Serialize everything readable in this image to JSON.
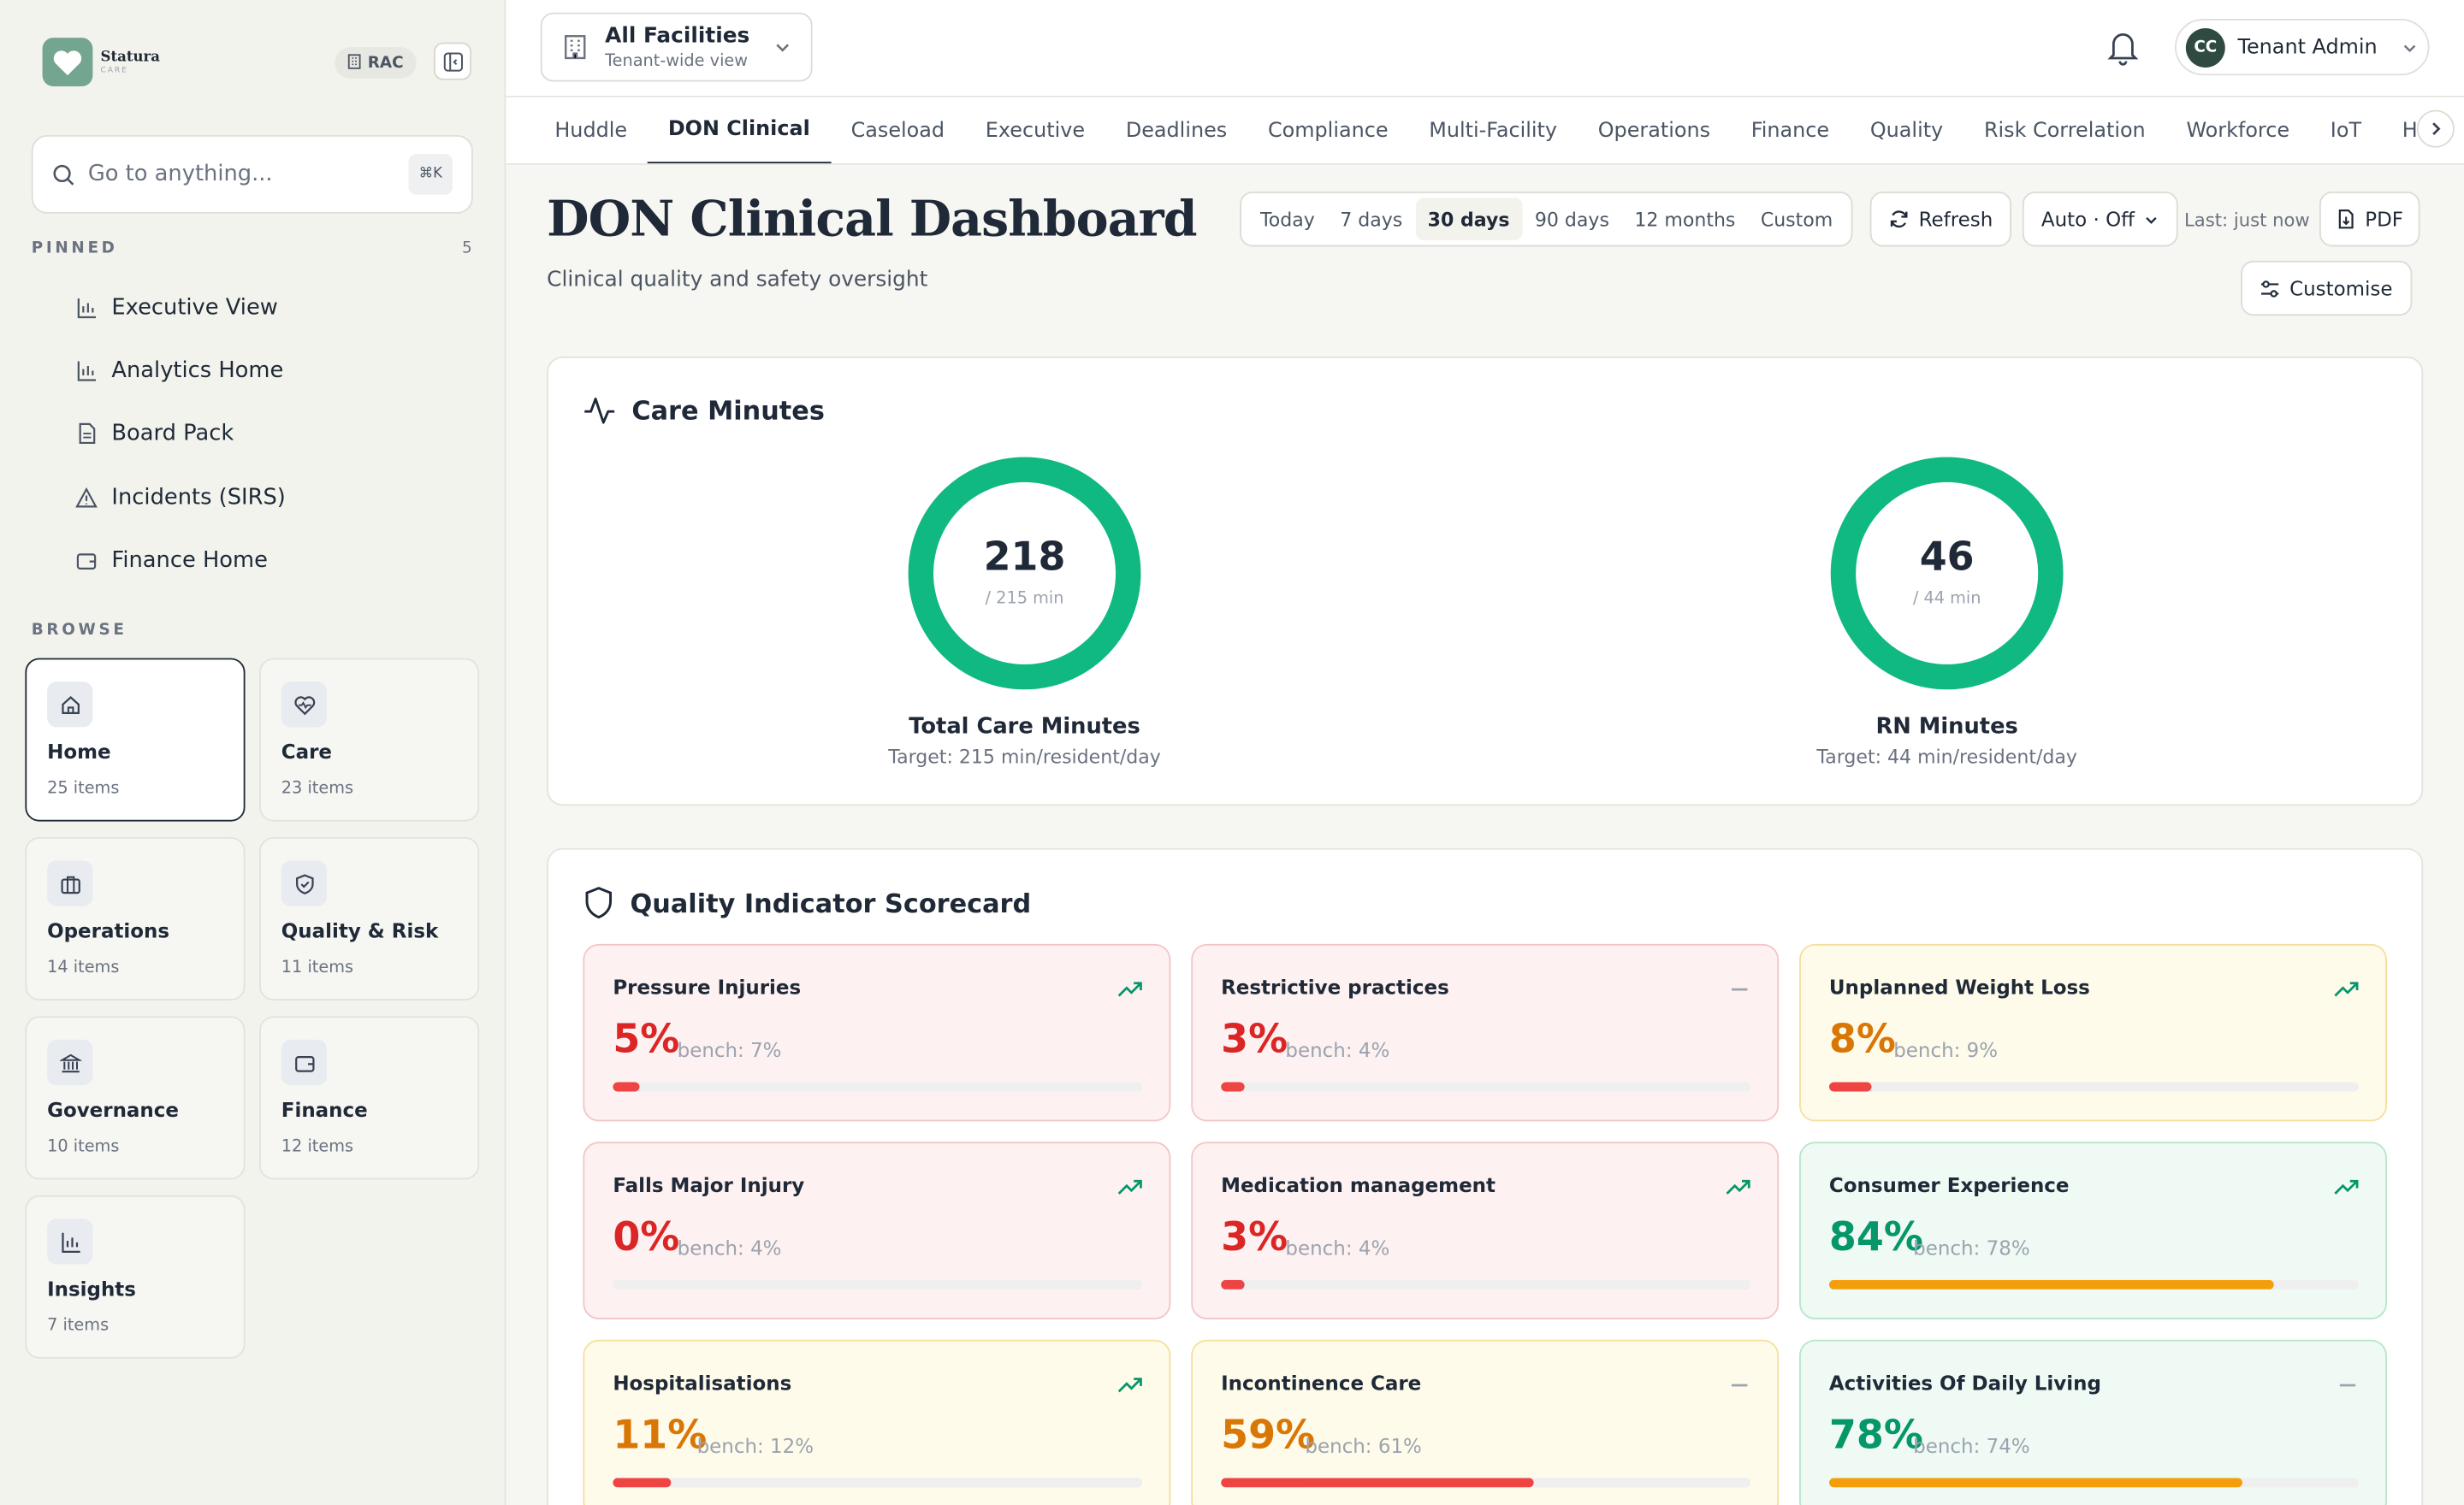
{
  "brand": {
    "name": "Statura",
    "sub": "CARE"
  },
  "sidebar": {
    "rac_label": "RAC",
    "search_placeholder": "Go to anything...",
    "search_shortcut": "⌘K",
    "pinned_title": "PINNED",
    "pinned_count": "5",
    "pinned": [
      {
        "label": "Executive View",
        "icon": "bar-chart-icon"
      },
      {
        "label": "Analytics Home",
        "icon": "bar-chart-icon"
      },
      {
        "label": "Board Pack",
        "icon": "document-icon"
      },
      {
        "label": "Incidents (SIRS)",
        "icon": "warning-icon"
      },
      {
        "label": "Finance Home",
        "icon": "wallet-icon"
      }
    ],
    "browse_title": "BROWSE",
    "browse": [
      {
        "label": "Home",
        "count": "25 items",
        "icon": "home-icon"
      },
      {
        "label": "Care",
        "count": "23 items",
        "icon": "heart-pulse-icon"
      },
      {
        "label": "Operations",
        "count": "14 items",
        "icon": "briefcase-icon"
      },
      {
        "label": "Quality & Risk",
        "count": "11 items",
        "icon": "shield-check-icon"
      },
      {
        "label": "Governance",
        "count": "10 items",
        "icon": "bank-icon"
      },
      {
        "label": "Finance",
        "count": "12 items",
        "icon": "wallet-icon"
      },
      {
        "label": "Insights",
        "count": "7 items",
        "icon": "bar-chart-icon"
      }
    ]
  },
  "topbar": {
    "facility_title": "All Facilities",
    "facility_sub": "Tenant-wide view",
    "user_initials": "CC",
    "user_name": "Tenant Admin"
  },
  "tabs": [
    "Huddle",
    "DON Clinical",
    "Caseload",
    "Executive",
    "Deadlines",
    "Compliance",
    "Multi-Facility",
    "Operations",
    "Finance",
    "Quality",
    "Risk Correlation",
    "Workforce",
    "IoT",
    "H"
  ],
  "active_tab": "DON Clinical",
  "page": {
    "title": "DON Clinical Dashboard",
    "subtitle": "Clinical quality and safety oversight",
    "ranges": [
      "Today",
      "7 days",
      "30 days",
      "90 days",
      "12 months",
      "Custom"
    ],
    "active_range": "30 days",
    "refresh_label": "Refresh",
    "auto_label": "Auto · Off",
    "last_updated": "Last: just now",
    "pdf_label": "PDF",
    "customise_label": "Customise"
  },
  "care_minutes": {
    "title": "Care Minutes",
    "gauges": [
      {
        "value": "218",
        "target": "/ 215 min",
        "label": "Total Care Minutes",
        "sub": "Target: 215 min/resident/day",
        "fraction": 1.0
      },
      {
        "value": "46",
        "target": "/ 44 min",
        "label": "RN Minutes",
        "sub": "Target: 44 min/resident/day",
        "fraction": 1.0
      }
    ]
  },
  "scorecard": {
    "title": "Quality Indicator Scorecard",
    "colors": {
      "red": "#dc2626",
      "amber": "#d97706",
      "green": "#059669",
      "bar_red": "#ef4444",
      "bar_amber": "#f59e0b"
    },
    "items": [
      {
        "name": "Pressure Injuries",
        "value": "5%",
        "bench": "bench: 7%",
        "status": "red",
        "trend": "trend-up-icon",
        "fill": 0.05,
        "bar": "bar_red"
      },
      {
        "name": "Restrictive practices",
        "value": "3%",
        "bench": "bench: 4%",
        "status": "red",
        "trend": "trend-flat-icon",
        "fill": 0.03,
        "bar": "bar_red"
      },
      {
        "name": "Unplanned Weight Loss",
        "value": "8%",
        "bench": "bench: 9%",
        "status": "amber",
        "trend": "trend-up-icon",
        "fill": 0.08,
        "bar": "bar_red"
      },
      {
        "name": "Falls Major Injury",
        "value": "0%",
        "bench": "bench: 4%",
        "status": "red",
        "trend": "trend-up-icon",
        "fill": 0.0,
        "bar": "bar_red"
      },
      {
        "name": "Medication management",
        "value": "3%",
        "bench": "bench: 4%",
        "status": "red",
        "trend": "trend-up-icon",
        "fill": 0.03,
        "bar": "bar_red"
      },
      {
        "name": "Consumer Experience",
        "value": "84%",
        "bench": "bench: 78%",
        "status": "green",
        "trend": "trend-up-icon",
        "fill": 0.84,
        "bar": "bar_amber"
      },
      {
        "name": "Hospitalisations",
        "value": "11%",
        "bench": "bench: 12%",
        "status": "amber",
        "trend": "trend-up-icon",
        "fill": 0.11,
        "bar": "bar_red"
      },
      {
        "name": "Incontinence Care",
        "value": "59%",
        "bench": "bench: 61%",
        "status": "amber",
        "trend": "trend-flat-icon",
        "fill": 0.59,
        "bar": "bar_red"
      },
      {
        "name": "Activities Of Daily Living",
        "value": "78%",
        "bench": "bench: 74%",
        "status": "green",
        "trend": "trend-flat-icon",
        "fill": 0.78,
        "bar": "bar_amber"
      }
    ]
  }
}
